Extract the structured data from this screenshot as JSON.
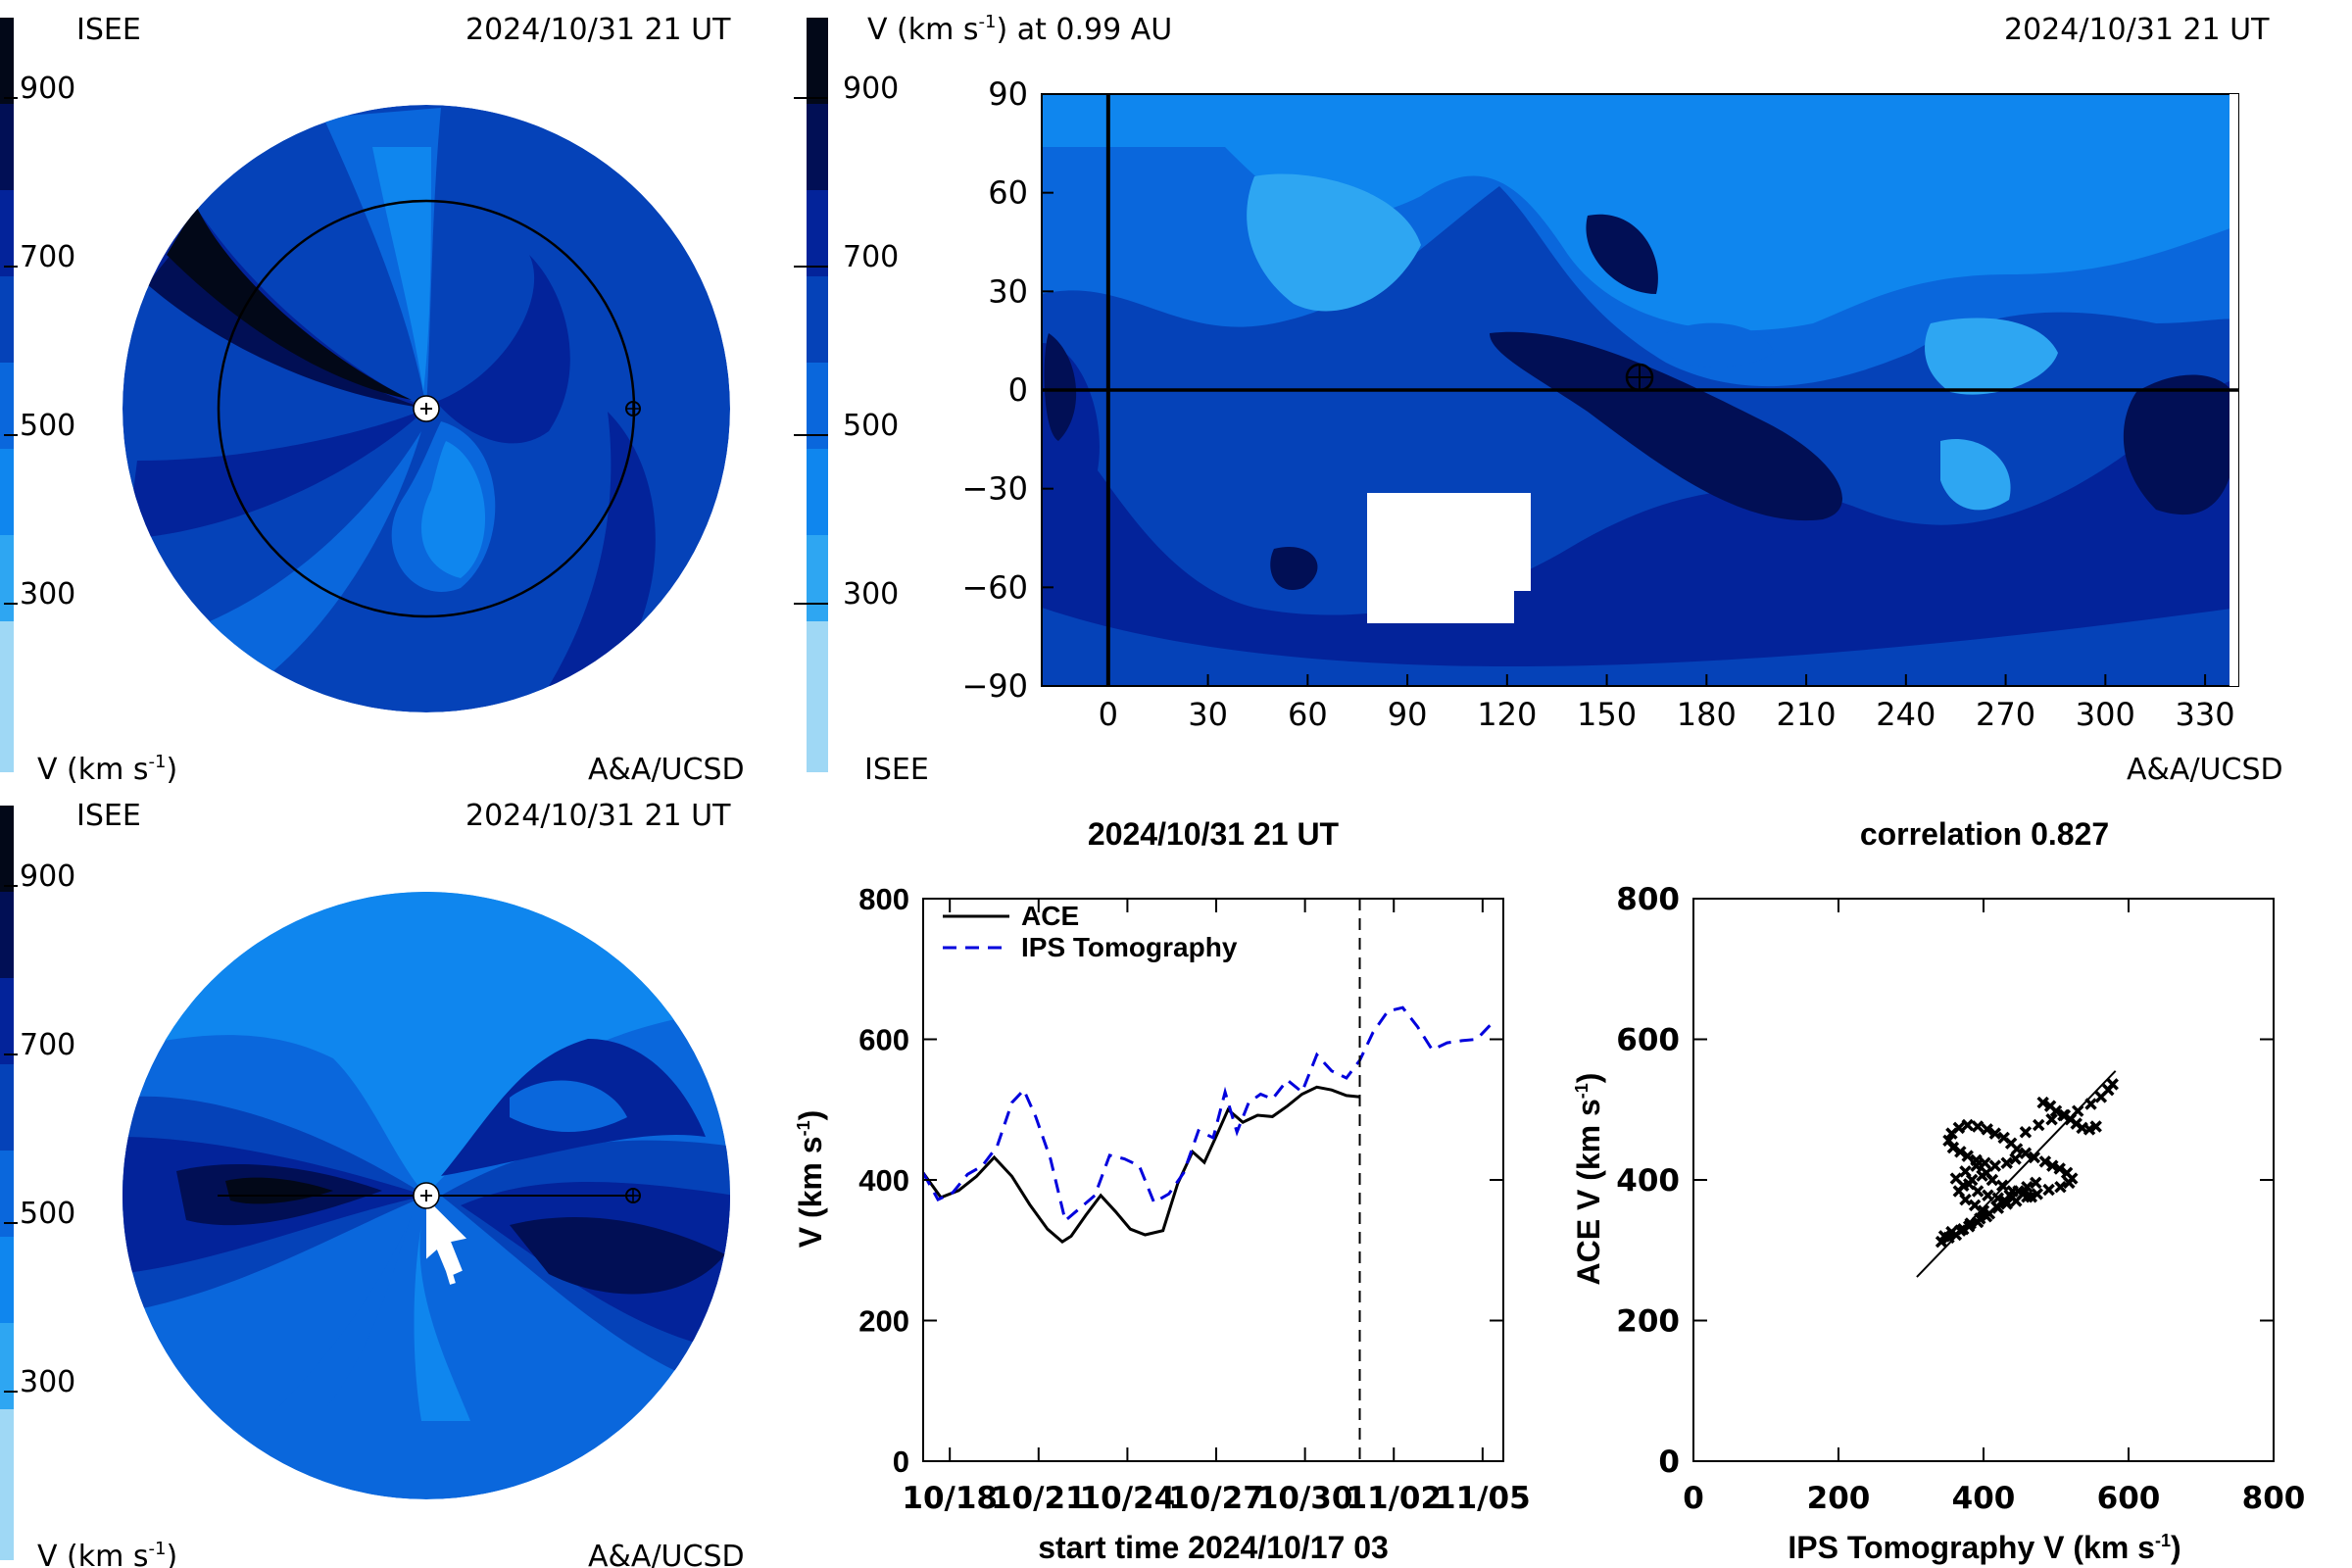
{
  "colors": {
    "scale": [
      "#9fd8f5",
      "#2ea6f2",
      "#0f86ee",
      "#0a67dc",
      "#0542b8",
      "#03239a",
      "#010f55",
      "#020818"
    ],
    "ace_line": "#000000",
    "ips_line": "#0000dd",
    "background": "#ffffff"
  },
  "panels": {
    "top_left": {
      "left_label": "ISEE",
      "timestamp": "2024/10/31 21 UT",
      "colorbar_ticks": [
        "900",
        "700",
        "500",
        "300"
      ],
      "unit_label": "V (km s",
      "unit_superscript": "-1",
      "unit_suffix": ")",
      "credit": "A&A/UCSD"
    },
    "top_right": {
      "title": "V (km s",
      "title_superscript": "-1",
      "title_suffix": ") at 0.99 AU",
      "timestamp": "2024/10/31 21 UT",
      "colorbar_ticks": [
        "900",
        "700",
        "500",
        "300"
      ],
      "left_label": "ISEE",
      "credit": "A&A/UCSD"
    },
    "bottom_left": {
      "left_label": "ISEE",
      "timestamp": "2024/10/31 21 UT",
      "colorbar_ticks": [
        "900",
        "700",
        "500",
        "300"
      ],
      "unit_label": "V (km s",
      "unit_superscript": "-1",
      "unit_suffix": ")",
      "credit": "A&A/UCSD"
    },
    "timeseries": {
      "title": "2024/10/31 21 UT",
      "xlabel": "start time 2024/10/17 03",
      "ylabel": "V (km s",
      "ylabel_superscript": "-1",
      "ylabel_suffix": ")",
      "legend": [
        "ACE",
        "IPS Tomography"
      ]
    },
    "scatter": {
      "title": "correlation 0.827",
      "xlabel": "IPS Tomography V (km s",
      "xlabel_superscript": "-1",
      "xlabel_suffix": ")",
      "ylabel": "ACE V (km s",
      "ylabel_superscript": "-1",
      "ylabel_suffix": ")"
    }
  },
  "chart_data": [
    {
      "type": "heatmap",
      "title": "V (km s-1) at 0.99 AU",
      "xlim": [
        -20,
        340
      ],
      "ylim": [
        -90,
        90
      ],
      "xticks": [
        "0",
        "30",
        "60",
        "90",
        "120",
        "150",
        "180",
        "210",
        "240",
        "270",
        "300",
        "330"
      ],
      "yticks": [
        "90",
        "60",
        "30",
        "0",
        "−30",
        "−60",
        "−90"
      ],
      "colorbar": {
        "label": "V (km s-1)",
        "ticks": [
          900,
          700,
          500,
          300
        ]
      },
      "earth_marker": [
        162,
        3
      ]
    },
    {
      "type": "line",
      "title": "2024/10/31 21 UT",
      "xlabel": "start time 2024/10/17 03",
      "ylabel": "V (km s-1)",
      "ylim": [
        0,
        800
      ],
      "xlim": [
        0,
        19.6
      ],
      "xtick_labels": [
        "10/18",
        "10/21",
        "10/24",
        "10/27",
        "10/30",
        "11/02",
        "11/05"
      ],
      "xtick_positions": [
        0.9,
        3.9,
        6.9,
        9.9,
        12.9,
        15.9,
        18.9
      ],
      "yticks": [
        "0",
        "200",
        "400",
        "600",
        "800"
      ],
      "vline_x": 14.75,
      "series": [
        {
          "name": "ACE",
          "x": [
            0,
            0.6,
            1.2,
            1.8,
            2.4,
            3.0,
            3.6,
            4.2,
            4.7,
            5.0,
            5.5,
            6.0,
            6.5,
            7.0,
            7.5,
            8.1,
            8.6,
            9.1,
            9.5,
            9.9,
            10.3,
            10.8,
            11.3,
            11.8,
            12.3,
            12.8,
            13.3,
            13.8,
            14.3,
            14.75
          ],
          "y": [
            410,
            375,
            385,
            405,
            432,
            405,
            365,
            330,
            312,
            320,
            350,
            378,
            355,
            330,
            322,
            328,
            395,
            440,
            425,
            462,
            500,
            482,
            492,
            490,
            505,
            522,
            532,
            528,
            520,
            518
          ]
        },
        {
          "name": "IPS Tomography",
          "x": [
            0,
            0.5,
            1.0,
            1.5,
            2.0,
            2.5,
            3.0,
            3.4,
            3.8,
            4.3,
            4.8,
            5.3,
            5.8,
            6.3,
            6.8,
            7.3,
            7.8,
            8.3,
            8.8,
            9.3,
            9.8,
            10.2,
            10.6,
            11.0,
            11.4,
            11.8,
            12.3,
            12.8,
            13.3,
            13.8,
            14.3,
            14.75,
            15.2,
            15.7,
            16.2,
            16.7,
            17.2,
            17.7,
            18.2,
            18.7,
            19.2
          ],
          "y": [
            410,
            372,
            382,
            408,
            420,
            448,
            510,
            528,
            490,
            430,
            342,
            360,
            378,
            435,
            430,
            420,
            368,
            380,
            410,
            470,
            460,
            525,
            468,
            510,
            522,
            515,
            542,
            525,
            578,
            555,
            545,
            570,
            610,
            640,
            645,
            618,
            585,
            595,
            598,
            600,
            622
          ]
        }
      ]
    },
    {
      "type": "scatter",
      "title": "correlation 0.827",
      "xlabel": "IPS Tomography V (km s-1)",
      "ylabel": "ACE V (km s-1)",
      "xlim": [
        0,
        800
      ],
      "ylim": [
        0,
        800
      ],
      "xticks": [
        "0",
        "200",
        "400",
        "600",
        "800"
      ],
      "yticks": [
        "0",
        "200",
        "400",
        "600",
        "800"
      ],
      "fit_line": {
        "x": [
          308,
          582
        ],
        "y": [
          262,
          555
        ]
      },
      "points": [
        [
          342,
          312
        ],
        [
          352,
          318
        ],
        [
          362,
          322
        ],
        [
          372,
          330
        ],
        [
          382,
          338
        ],
        [
          395,
          345
        ],
        [
          408,
          352
        ],
        [
          420,
          360
        ],
        [
          432,
          366
        ],
        [
          445,
          370
        ],
        [
          460,
          376
        ],
        [
          474,
          380
        ],
        [
          490,
          386
        ],
        [
          506,
          390
        ],
        [
          518,
          396
        ],
        [
          522,
          402
        ],
        [
          515,
          410
        ],
        [
          505,
          416
        ],
        [
          495,
          420
        ],
        [
          485,
          426
        ],
        [
          470,
          432
        ],
        [
          458,
          438
        ],
        [
          446,
          444
        ],
        [
          438,
          452
        ],
        [
          428,
          460
        ],
        [
          416,
          466
        ],
        [
          405,
          472
        ],
        [
          392,
          476
        ],
        [
          378,
          478
        ],
        [
          366,
          474
        ],
        [
          356,
          466
        ],
        [
          352,
          456
        ],
        [
          358,
          446
        ],
        [
          368,
          440
        ],
        [
          378,
          434
        ],
        [
          390,
          428
        ],
        [
          402,
          424
        ],
        [
          416,
          420
        ],
        [
          432,
          424
        ],
        [
          444,
          430
        ],
        [
          458,
          468
        ],
        [
          476,
          478
        ],
        [
          494,
          486
        ],
        [
          512,
          492
        ],
        [
          530,
          498
        ],
        [
          548,
          508
        ],
        [
          562,
          518
        ],
        [
          572,
          528
        ],
        [
          578,
          536
        ],
        [
          362,
          402
        ],
        [
          375,
          412
        ],
        [
          390,
          420
        ],
        [
          404,
          410
        ],
        [
          380,
          394
        ],
        [
          366,
          384
        ],
        [
          375,
          372
        ],
        [
          388,
          364
        ],
        [
          400,
          356
        ],
        [
          372,
          392
        ],
        [
          384,
          400
        ],
        [
          398,
          406
        ],
        [
          412,
          400
        ],
        [
          426,
          392
        ],
        [
          440,
          384
        ],
        [
          454,
          380
        ],
        [
          466,
          376
        ],
        [
          482,
          510
        ],
        [
          492,
          505
        ],
        [
          500,
          498
        ],
        [
          510,
          492
        ],
        [
          520,
          486
        ],
        [
          528,
          480
        ],
        [
          536,
          474
        ],
        [
          546,
          472
        ],
        [
          555,
          476
        ],
        [
          430,
          370
        ],
        [
          418,
          362
        ],
        [
          404,
          348
        ],
        [
          392,
          340
        ],
        [
          380,
          334
        ],
        [
          368,
          328
        ],
        [
          356,
          326
        ],
        [
          346,
          320
        ],
        [
          392,
          384
        ],
        [
          406,
          378
        ],
        [
          420,
          374
        ],
        [
          436,
          378
        ],
        [
          448,
          384
        ],
        [
          460,
          390
        ],
        [
          472,
          396
        ]
      ]
    }
  ]
}
